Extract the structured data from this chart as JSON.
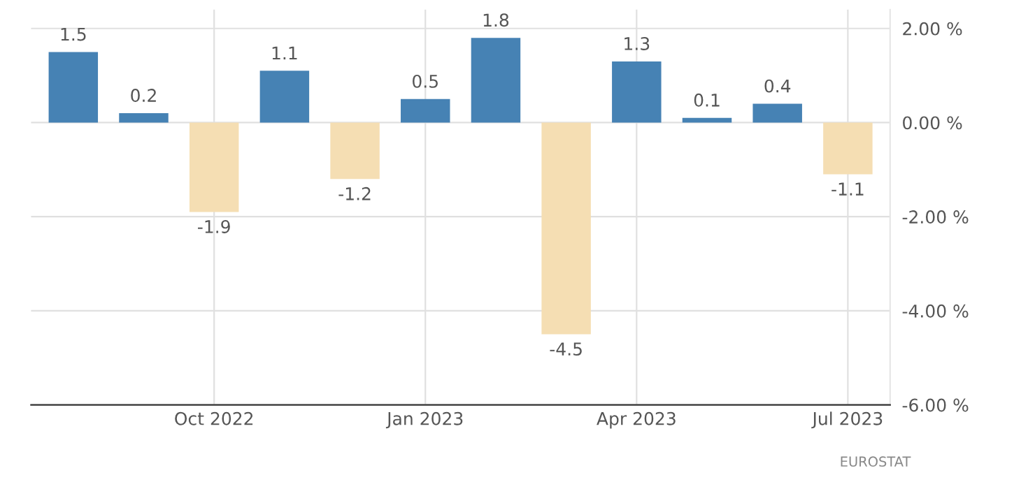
{
  "chart_data": {
    "type": "bar",
    "categories": [
      null,
      null,
      "Oct 2022",
      null,
      null,
      "Jan 2023",
      null,
      null,
      "Apr 2023",
      null,
      null,
      "Jul 2023"
    ],
    "values": [
      1.5,
      0.2,
      -1.9,
      1.1,
      -1.2,
      0.5,
      1.8,
      -4.5,
      1.3,
      0.1,
      0.4,
      -1.1
    ],
    "colors": [
      "#4682b4",
      "#4682b4",
      "#f5deb3",
      "#4682b4",
      "#f5deb3",
      "#4682b4",
      "#4682b4",
      "#f5deb3",
      "#4682b4",
      "#4682b4",
      "#4682b4",
      "#f5deb3"
    ],
    "ylim": [
      -6,
      2.4
    ],
    "yticks": [
      {
        "value": 2,
        "label": "2.00 %"
      },
      {
        "value": 0,
        "label": "0.00 %"
      },
      {
        "value": -2,
        "label": "-2.00 %"
      },
      {
        "value": -4,
        "label": "-4.00 %"
      },
      {
        "value": -6,
        "label": "-6.00 %"
      }
    ],
    "grid": true,
    "data_labels": true,
    "annotations": [
      "EUROSTAT"
    ]
  }
}
